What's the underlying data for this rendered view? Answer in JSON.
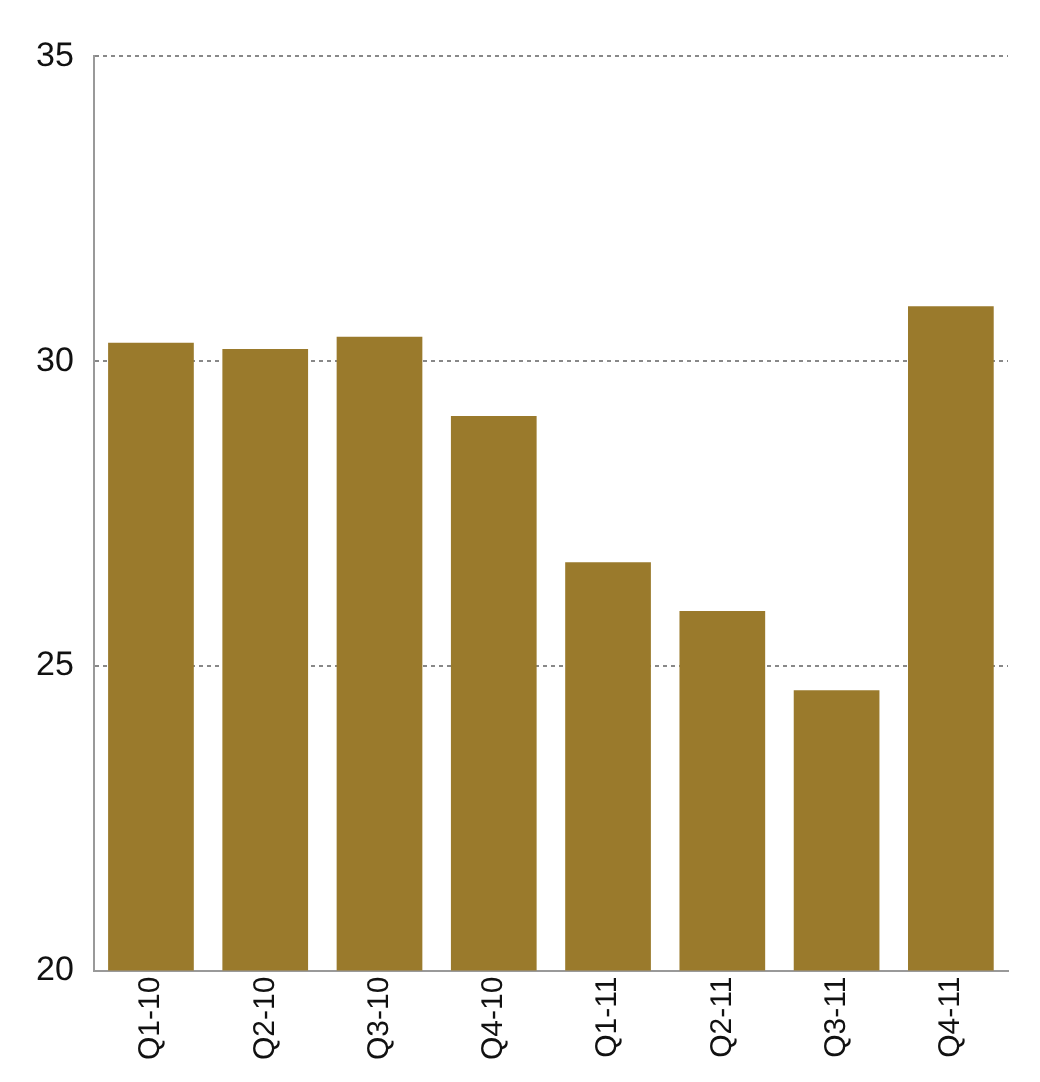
{
  "chart_data": {
    "type": "bar",
    "categories": [
      "Q1-10",
      "Q2-10",
      "Q3-10",
      "Q4-10",
      "Q1-11",
      "Q2-11",
      "Q3-11",
      "Q4-11"
    ],
    "values": [
      30.3,
      30.2,
      30.4,
      29.1,
      26.7,
      25.9,
      24.6,
      30.9
    ],
    "color": "#9a7a2c",
    "ylim": [
      20,
      35
    ],
    "yticks": [
      20,
      25,
      30,
      35
    ],
    "grid": "y"
  }
}
